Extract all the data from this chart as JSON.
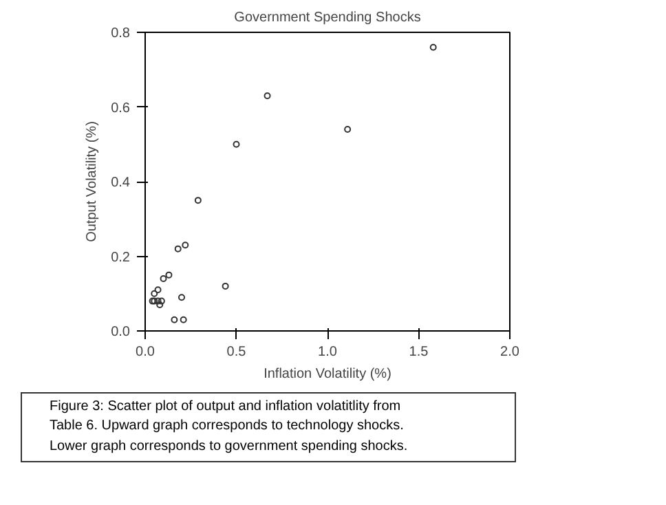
{
  "chart_data": {
    "type": "scatter",
    "title": "Government Spending Shocks",
    "xlabel": "Inflation Volatility (%)",
    "ylabel": "Output Volatility (%)",
    "x": [
      1.58,
      0.67,
      1.11,
      0.5,
      0.29,
      0.22,
      0.18,
      0.44,
      0.13,
      0.1,
      0.07,
      0.05,
      0.04,
      0.05,
      0.07,
      0.09,
      0.08,
      0.2,
      0.16,
      0.21
    ],
    "series": [
      {
        "color": "#333333",
        "values": [
          0.76,
          0.63,
          0.54,
          0.5,
          0.35,
          0.23,
          0.22,
          0.12,
          0.15,
          0.14,
          0.11,
          0.1,
          0.08,
          0.08,
          0.08,
          0.08,
          0.07,
          0.09,
          0.03,
          0.03
        ]
      }
    ],
    "xlim": [
      0,
      2.0
    ],
    "ylim": [
      0,
      0.8
    ],
    "xticks": [
      {
        "value": 0,
        "label": "0.0"
      },
      0.5,
      {
        "value": 1,
        "label": "1.0"
      },
      1.5,
      {
        "value": 2,
        "label": "2.0"
      }
    ],
    "yticks": [
      {
        "value": 0,
        "label": "0.0"
      },
      0.2,
      0.4,
      0.6,
      0.8
    ],
    "grid": false,
    "marker": "circle",
    "annotations": [
      "Figure 3: Scatter plot of output and inflation volatitlity from\nTable 6. Upward graph corresponds to technology shocks.\nLower graph corresponds to government spending shocks."
    ]
  }
}
